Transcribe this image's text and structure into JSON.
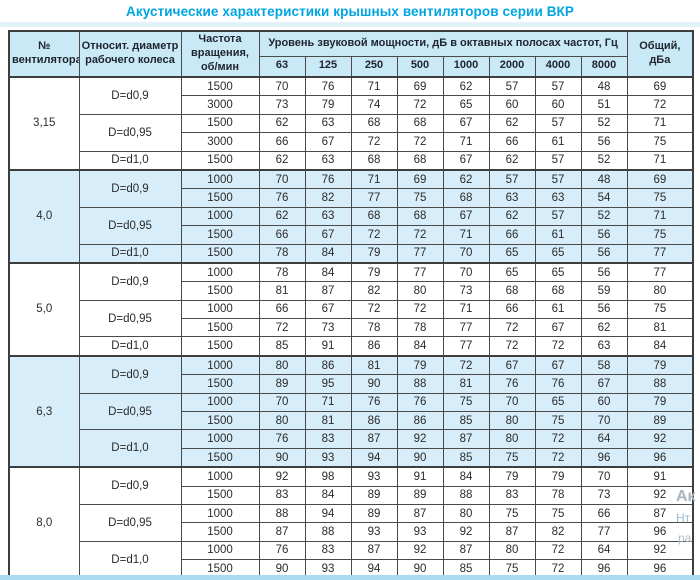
{
  "title": "Акустические характеристики крышных вентиляторов серии ВКР",
  "colors": {
    "title_accent": "#00a5e0",
    "header_bg": "#c9e9f6",
    "shaded_group_bg": "#d7edf9",
    "border": "#3e3e3e",
    "bottom_strip": "#a8daf0"
  },
  "table": {
    "headers": {
      "fan_number": "№ вентилятора",
      "diameter": "Относит. диаметр рабочего колеса",
      "speed": "Частота вращения, об/мин",
      "spl_group": "Уровень звуковой мощности, дБ в октавных полосах частот, Гц",
      "bands": [
        "63",
        "125",
        "250",
        "500",
        "1000",
        "2000",
        "4000",
        "8000"
      ],
      "total": "Общий, дБа"
    },
    "groups": [
      {
        "fan": "3,15",
        "shaded": false,
        "subgroups": [
          {
            "diameter": "D=d0,9",
            "rows": [
              {
                "speed": "1500",
                "levels": [
                  "70",
                  "76",
                  "71",
                  "69",
                  "62",
                  "57",
                  "57",
                  "48"
                ],
                "total": "69"
              },
              {
                "speed": "3000",
                "levels": [
                  "73",
                  "79",
                  "74",
                  "72",
                  "65",
                  "60",
                  "60",
                  "51"
                ],
                "total": "72"
              }
            ]
          },
          {
            "diameter": "D=d0,95",
            "rows": [
              {
                "speed": "1500",
                "levels": [
                  "62",
                  "63",
                  "68",
                  "68",
                  "67",
                  "62",
                  "57",
                  "52"
                ],
                "total": "71"
              },
              {
                "speed": "3000",
                "levels": [
                  "66",
                  "67",
                  "72",
                  "72",
                  "71",
                  "66",
                  "61",
                  "56"
                ],
                "total": "75"
              }
            ]
          },
          {
            "diameter": "D=d1,0",
            "rows": [
              {
                "speed": "1500",
                "levels": [
                  "62",
                  "63",
                  "68",
                  "68",
                  "67",
                  "62",
                  "57",
                  "52"
                ],
                "total": "71"
              }
            ]
          }
        ]
      },
      {
        "fan": "4,0",
        "shaded": true,
        "subgroups": [
          {
            "diameter": "D=d0,9",
            "rows": [
              {
                "speed": "1000",
                "levels": [
                  "70",
                  "76",
                  "71",
                  "69",
                  "62",
                  "57",
                  "57",
                  "48"
                ],
                "total": "69"
              },
              {
                "speed": "1500",
                "levels": [
                  "76",
                  "82",
                  "77",
                  "75",
                  "68",
                  "63",
                  "63",
                  "54"
                ],
                "total": "75"
              }
            ]
          },
          {
            "diameter": "D=d0,95",
            "rows": [
              {
                "speed": "1000",
                "levels": [
                  "62",
                  "63",
                  "68",
                  "68",
                  "67",
                  "62",
                  "57",
                  "52"
                ],
                "total": "71"
              },
              {
                "speed": "1500",
                "levels": [
                  "66",
                  "67",
                  "72",
                  "72",
                  "71",
                  "66",
                  "61",
                  "56"
                ],
                "total": "75"
              }
            ]
          },
          {
            "diameter": "D=d1,0",
            "rows": [
              {
                "speed": "1500",
                "levels": [
                  "78",
                  "84",
                  "79",
                  "77",
                  "70",
                  "65",
                  "65",
                  "56"
                ],
                "total": "77"
              }
            ]
          }
        ]
      },
      {
        "fan": "5,0",
        "shaded": false,
        "subgroups": [
          {
            "diameter": "D=d0,9",
            "rows": [
              {
                "speed": "1000",
                "levels": [
                  "78",
                  "84",
                  "79",
                  "77",
                  "70",
                  "65",
                  "65",
                  "56"
                ],
                "total": "77"
              },
              {
                "speed": "1500",
                "levels": [
                  "81",
                  "87",
                  "82",
                  "80",
                  "73",
                  "68",
                  "68",
                  "59"
                ],
                "total": "80"
              }
            ]
          },
          {
            "diameter": "D=d0,95",
            "rows": [
              {
                "speed": "1000",
                "levels": [
                  "66",
                  "67",
                  "72",
                  "72",
                  "71",
                  "66",
                  "61",
                  "56"
                ],
                "total": "75"
              },
              {
                "speed": "1500",
                "levels": [
                  "72",
                  "73",
                  "78",
                  "78",
                  "77",
                  "72",
                  "67",
                  "62"
                ],
                "total": "81"
              }
            ]
          },
          {
            "diameter": "D=d1,0",
            "rows": [
              {
                "speed": "1500",
                "levels": [
                  "85",
                  "91",
                  "86",
                  "84",
                  "77",
                  "72",
                  "72",
                  "63"
                ],
                "total": "84"
              }
            ]
          }
        ]
      },
      {
        "fan": "6,3",
        "shaded": true,
        "subgroups": [
          {
            "diameter": "D=d0,9",
            "rows": [
              {
                "speed": "1000",
                "levels": [
                  "80",
                  "86",
                  "81",
                  "79",
                  "72",
                  "67",
                  "67",
                  "58"
                ],
                "total": "79"
              },
              {
                "speed": "1500",
                "levels": [
                  "89",
                  "95",
                  "90",
                  "88",
                  "81",
                  "76",
                  "76",
                  "67"
                ],
                "total": "88"
              }
            ]
          },
          {
            "diameter": "D=d0,95",
            "rows": [
              {
                "speed": "1000",
                "levels": [
                  "70",
                  "71",
                  "76",
                  "76",
                  "75",
                  "70",
                  "65",
                  "60"
                ],
                "total": "79"
              },
              {
                "speed": "1500",
                "levels": [
                  "80",
                  "81",
                  "86",
                  "86",
                  "85",
                  "80",
                  "75",
                  "70"
                ],
                "total": "89"
              }
            ]
          },
          {
            "diameter": "D=d1,0",
            "rows": [
              {
                "speed": "1000",
                "levels": [
                  "76",
                  "83",
                  "87",
                  "92",
                  "87",
                  "80",
                  "72",
                  "64"
                ],
                "total": "92"
              },
              {
                "speed": "1500",
                "levels": [
                  "90",
                  "93",
                  "94",
                  "90",
                  "85",
                  "75",
                  "72",
                  "96"
                ],
                "total": "96"
              }
            ]
          }
        ]
      },
      {
        "fan": "8,0",
        "shaded": false,
        "subgroups": [
          {
            "diameter": "D=d0,9",
            "rows": [
              {
                "speed": "1000",
                "levels": [
                  "92",
                  "98",
                  "93",
                  "91",
                  "84",
                  "79",
                  "79",
                  "70"
                ],
                "total": "91"
              },
              {
                "speed": "1500",
                "levels": [
                  "83",
                  "84",
                  "89",
                  "89",
                  "88",
                  "83",
                  "78",
                  "73"
                ],
                "total": "92"
              }
            ]
          },
          {
            "diameter": "D=d0,95",
            "rows": [
              {
                "speed": "1000",
                "levels": [
                  "88",
                  "94",
                  "89",
                  "87",
                  "80",
                  "75",
                  "75",
                  "66"
                ],
                "total": "87"
              },
              {
                "speed": "1500",
                "levels": [
                  "87",
                  "88",
                  "93",
                  "93",
                  "92",
                  "87",
                  "82",
                  "77"
                ],
                "total": "96"
              }
            ]
          },
          {
            "diameter": "D=d1,0",
            "rows": [
              {
                "speed": "1000",
                "levels": [
                  "76",
                  "83",
                  "87",
                  "92",
                  "87",
                  "80",
                  "72",
                  "64"
                ],
                "total": "92"
              },
              {
                "speed": "1500",
                "levels": [
                  "90",
                  "93",
                  "94",
                  "90",
                  "85",
                  "75",
                  "72",
                  "96"
                ],
                "total": "96"
              }
            ]
          }
        ]
      }
    ]
  },
  "watermark": {
    "frag1": "Ак",
    "frag2": "Нт",
    "frag3": "ра"
  }
}
